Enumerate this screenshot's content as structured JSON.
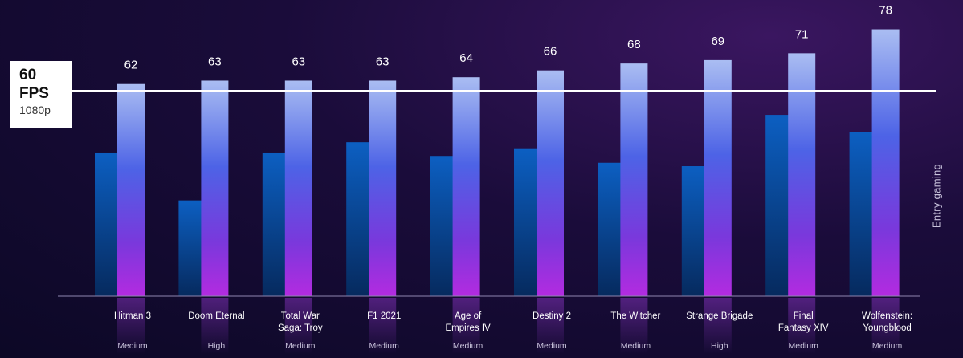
{
  "chart_data": {
    "type": "bar",
    "categories": [
      "Hitman 3",
      "Doom Eternal",
      "Total War\nSaga: Troy",
      "F1 2021",
      "Age of\nEmpires IV",
      "Destiny 2",
      "The Witcher",
      "Strange Brigade",
      "Final\nFantasy XIV",
      "Wolfenstein:\nYoungblood"
    ],
    "settings": [
      "Medium",
      "High",
      "Medium",
      "Medium",
      "Medium",
      "Medium",
      "Medium",
      "High",
      "Medium",
      "Medium"
    ],
    "series": [
      {
        "values": [
          42,
          28,
          42,
          45,
          41,
          43,
          39,
          38,
          53,
          48
        ],
        "color": "#0b5ec0"
      },
      {
        "values": [
          62,
          63,
          63,
          63,
          64,
          66,
          68,
          69,
          71,
          78
        ],
        "color": "#7d5cf0"
      }
    ],
    "data_labels": [
      "62",
      "63",
      "63",
      "63",
      "64",
      "66",
      "68",
      "69",
      "71",
      "78"
    ],
    "ylim": [
      0,
      80
    ],
    "reference_line": {
      "value": 60,
      "label_value": "60",
      "label_unit": "FPS",
      "label_sub": "1080p"
    },
    "side_label": "Entry gaming",
    "grid": false
  }
}
